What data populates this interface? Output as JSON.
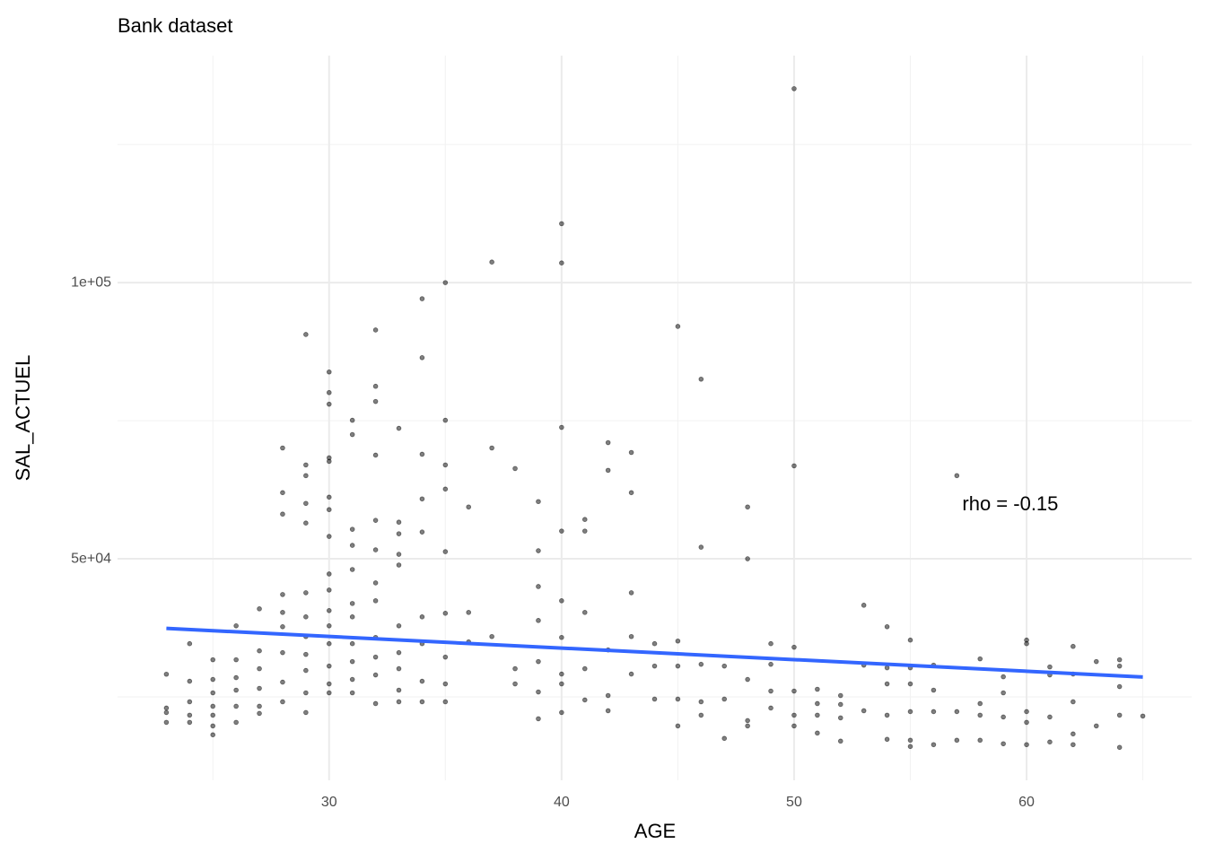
{
  "chart_data": {
    "type": "scatter",
    "title": "Bank dataset",
    "x_label": "AGE",
    "y_label": "SAL_ACTUEL",
    "xlim": [
      20.9,
      67.1
    ],
    "ylim": [
      9900,
      141100
    ],
    "xticks": [
      30,
      40,
      50,
      60
    ],
    "xminor": [
      25,
      35,
      45,
      55,
      65
    ],
    "yticks": [
      {
        "value": 50000,
        "label": "5e+04"
      },
      {
        "value": 100000,
        "label": "1e+05"
      }
    ],
    "yminor": [
      25000,
      75000,
      125000
    ],
    "grid": true,
    "color": "#000000",
    "opacity": 0.5,
    "x": [
      23,
      23,
      23,
      23,
      24,
      24,
      24,
      24,
      24,
      25,
      25,
      25,
      25,
      25,
      25,
      25,
      26,
      26,
      26,
      26,
      26,
      26,
      27,
      27,
      27,
      27,
      27,
      27,
      28,
      28,
      28,
      28,
      28,
      28,
      28,
      28,
      28,
      29,
      29,
      29,
      29,
      29,
      29,
      29,
      29,
      29,
      29,
      29,
      29,
      30,
      30,
      30,
      30,
      30,
      30,
      30,
      30,
      30,
      30,
      30,
      30,
      30,
      30,
      30,
      30,
      31,
      31,
      31,
      31,
      31,
      31,
      31,
      31,
      31,
      31,
      31,
      32,
      32,
      32,
      32,
      32,
      32,
      32,
      32,
      32,
      32,
      32,
      32,
      33,
      33,
      33,
      33,
      33,
      33,
      33,
      33,
      33,
      33,
      34,
      34,
      34,
      34,
      34,
      34,
      34,
      34,
      34,
      35,
      35,
      35,
      35,
      35,
      35,
      35,
      35,
      35,
      36,
      36,
      36,
      37,
      37,
      37,
      38,
      38,
      38,
      39,
      39,
      39,
      39,
      39,
      39,
      39,
      40,
      40,
      40,
      40,
      40,
      40,
      40,
      40,
      40,
      41,
      41,
      41,
      41,
      41,
      42,
      42,
      42,
      42,
      42,
      43,
      43,
      43,
      43,
      43,
      44,
      44,
      44,
      45,
      45,
      45,
      45,
      45,
      46,
      46,
      46,
      46,
      46,
      47,
      47,
      47,
      48,
      48,
      48,
      48,
      48,
      49,
      49,
      49,
      49,
      50,
      50,
      50,
      50,
      50,
      50,
      51,
      51,
      51,
      51,
      52,
      52,
      52,
      52,
      53,
      53,
      53,
      54,
      54,
      54,
      54,
      54,
      55,
      55,
      55,
      55,
      55,
      55,
      56,
      56,
      56,
      56,
      57,
      57,
      57,
      58,
      58,
      58,
      58,
      59,
      59,
      59,
      59,
      60,
      60,
      60,
      60,
      60,
      61,
      61,
      61,
      61,
      62,
      62,
      62,
      62,
      62,
      63,
      63,
      64,
      64,
      64,
      64,
      64,
      65
    ],
    "values": [
      29100,
      22980,
      22170,
      20390,
      34630,
      27830,
      24110,
      21690,
      20390,
      31720,
      28160,
      25730,
      23300,
      21690,
      19740,
      18130,
      37860,
      31720,
      28480,
      26220,
      23300,
      20390,
      40940,
      33330,
      30100,
      26540,
      23300,
      22010,
      43530,
      40290,
      37700,
      33010,
      27670,
      24110,
      70060,
      61970,
      58090,
      90610,
      66990,
      65050,
      60030,
      56470,
      43850,
      39480,
      35920,
      32690,
      29780,
      25730,
      22170,
      83820,
      80090,
      77990,
      68280,
      67640,
      61160,
      58900,
      54050,
      47250,
      44340,
      40620,
      37860,
      34630,
      30580,
      27350,
      25730,
      75080,
      72490,
      55340,
      52430,
      48060,
      41910,
      39480,
      34630,
      31390,
      28160,
      25730,
      91420,
      81230,
      78480,
      68770,
      56960,
      51620,
      45630,
      42400,
      35760,
      32200,
      28970,
      23790,
      73620,
      56630,
      54530,
      50810,
      48870,
      37860,
      33010,
      30100,
      26220,
      24110,
      97080,
      86410,
      68930,
      60840,
      54850,
      39480,
      34630,
      27830,
      24110,
      100000,
      75080,
      66990,
      62620,
      51290,
      40130,
      32200,
      27350,
      24110,
      59380,
      40290,
      34950,
      103720,
      70060,
      35920,
      66340,
      30100,
      27350,
      60360,
      51460,
      44980,
      38830,
      31390,
      25890,
      21040,
      110670,
      103560,
      73790,
      55020,
      42400,
      35760,
      29130,
      27350,
      22170,
      57120,
      55020,
      40290,
      30100,
      24440,
      71030,
      66020,
      33500,
      25240,
      22490,
      69250,
      61970,
      43850,
      35920,
      29130,
      34630,
      30580,
      24600,
      92070,
      35110,
      30580,
      24600,
      19740,
      82520,
      52100,
      30900,
      24110,
      21690,
      30580,
      24600,
      17480,
      59380,
      50000,
      28160,
      20710,
      19740,
      34630,
      30900,
      26050,
      22980,
      135110,
      66830,
      33990,
      26050,
      21690,
      19740,
      26380,
      23790,
      21690,
      18450,
      25240,
      23630,
      21200,
      16990,
      41590,
      30740,
      22490,
      37700,
      30260,
      27350,
      21690,
      17320,
      35280,
      30260,
      27350,
      22330,
      17150,
      16020,
      30740,
      26220,
      22330,
      16350,
      65050,
      22330,
      17150,
      31880,
      23790,
      21690,
      17150,
      28640,
      25730,
      21360,
      16510,
      35280,
      34630,
      22330,
      20390,
      16350,
      30420,
      28970,
      21360,
      16830,
      34140,
      29130,
      24110,
      18290,
      16350,
      31390,
      19740,
      31720,
      30580,
      26860,
      21690,
      15860,
      21530
    ],
    "trend": {
      "x": [
        23,
        65
      ],
      "values": [
        37400,
        28600
      ],
      "color": "#3366ff"
    },
    "annotations": [
      {
        "text": "rho = -0.15",
        "x": 59.3,
        "y": 59700
      }
    ]
  }
}
